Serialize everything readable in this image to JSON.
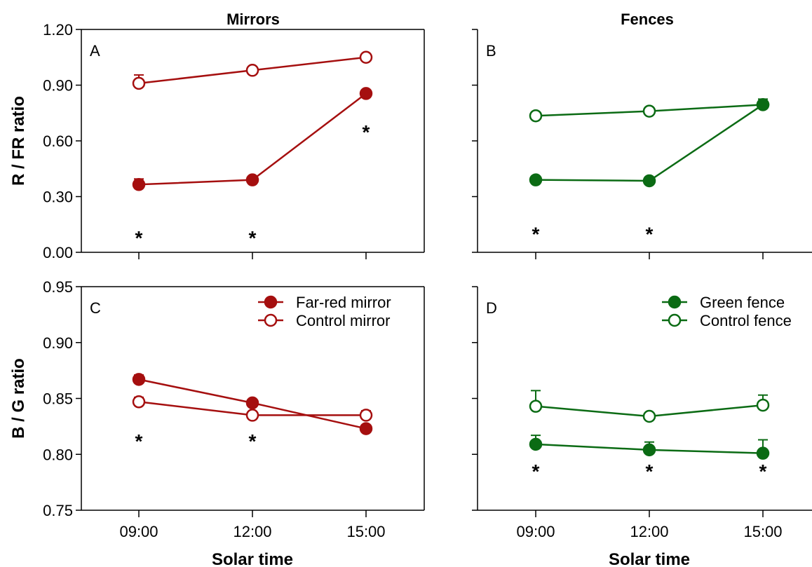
{
  "column_titles": [
    "Mirrors",
    "Fences"
  ],
  "colors": {
    "mirror": "#a50f0f",
    "fence": "#0b6b14"
  },
  "chart_data": [
    {
      "id": "A",
      "type": "line",
      "panel_label": "A",
      "column": "Mirrors",
      "categories": [
        "09:00",
        "12:00",
        "15:00"
      ],
      "ylabel": "R / FR ratio",
      "xlabel": "",
      "ylim": [
        0,
        1.2
      ],
      "yticks": [
        "0.00",
        "0.30",
        "0.60",
        "0.90",
        "1.20"
      ],
      "ytick_values": [
        0,
        0.3,
        0.6,
        0.9,
        1.2
      ],
      "show_ytick_labels": true,
      "show_xtick_labels": false,
      "legend": "none",
      "color_key": "mirror",
      "series": [
        {
          "key": "control",
          "filled": false,
          "values": [
            0.91,
            0.98,
            1.05
          ],
          "errors": [
            0.045,
            0.005,
            0.005
          ]
        },
        {
          "key": "treatment",
          "filled": true,
          "values": [
            0.365,
            0.39,
            0.855
          ],
          "errors": [
            0.03,
            0.005,
            0.005
          ]
        }
      ],
      "asterisks": [
        {
          "category": "09:00",
          "y": 0.08,
          "text": "*"
        },
        {
          "category": "12:00",
          "y": 0.08,
          "text": "*"
        },
        {
          "category": "15:00",
          "y": 0.65,
          "text": "*"
        }
      ]
    },
    {
      "id": "B",
      "type": "line",
      "panel_label": "B",
      "column": "Fences",
      "categories": [
        "09:00",
        "12:00",
        "15:00"
      ],
      "ylabel": "",
      "xlabel": "",
      "ylim": [
        0,
        1.2
      ],
      "yticks": [
        "0.00",
        "0.30",
        "0.60",
        "0.90",
        "1.20"
      ],
      "ytick_values": [
        0,
        0.3,
        0.6,
        0.9,
        1.2
      ],
      "show_ytick_labels": false,
      "show_xtick_labels": false,
      "legend": "none",
      "color_key": "fence",
      "series": [
        {
          "key": "control",
          "filled": false,
          "values": [
            0.735,
            0.76,
            0.795
          ],
          "errors": [
            0.005,
            0.005,
            0.005
          ]
        },
        {
          "key": "treatment",
          "filled": true,
          "values": [
            0.39,
            0.385,
            0.795
          ],
          "errors": [
            0.005,
            0.005,
            0.03
          ]
        }
      ],
      "asterisks": [
        {
          "category": "09:00",
          "y": 0.1,
          "text": "*"
        },
        {
          "category": "12:00",
          "y": 0.1,
          "text": "*"
        }
      ]
    },
    {
      "id": "C",
      "type": "line",
      "panel_label": "C",
      "column": "Mirrors",
      "categories": [
        "09:00",
        "12:00",
        "15:00"
      ],
      "ylabel": "B / G ratio",
      "xlabel": "Solar time",
      "ylim": [
        0.75,
        0.95
      ],
      "yticks": [
        "0.75",
        "0.80",
        "0.85",
        "0.90",
        "0.95"
      ],
      "ytick_values": [
        0.75,
        0.8,
        0.85,
        0.9,
        0.95
      ],
      "show_ytick_labels": true,
      "show_xtick_labels": true,
      "legend": "top-right",
      "color_key": "mirror",
      "series": [
        {
          "key": "treatment",
          "name": "Far-red mirror",
          "filled": true,
          "values": [
            0.867,
            0.846,
            0.823
          ],
          "errors": [
            0.004,
            0.001,
            0.001
          ]
        },
        {
          "key": "control",
          "name": "Control mirror",
          "filled": false,
          "values": [
            0.847,
            0.835,
            0.835
          ],
          "errors": [
            0.004,
            0.001,
            0.004
          ]
        }
      ],
      "asterisks": [
        {
          "category": "09:00",
          "y": 0.812,
          "text": "*"
        },
        {
          "category": "12:00",
          "y": 0.812,
          "text": "*"
        }
      ]
    },
    {
      "id": "D",
      "type": "line",
      "panel_label": "D",
      "column": "Fences",
      "categories": [
        "09:00",
        "12:00",
        "15:00"
      ],
      "ylabel": "",
      "xlabel": "Solar time",
      "ylim": [
        0.75,
        0.95
      ],
      "yticks": [
        "0.75",
        "0.80",
        "0.85",
        "0.90",
        "0.95"
      ],
      "ytick_values": [
        0.75,
        0.8,
        0.85,
        0.9,
        0.95
      ],
      "show_ytick_labels": false,
      "show_xtick_labels": true,
      "legend": "top-right",
      "color_key": "fence",
      "series": [
        {
          "key": "treatment",
          "name": "Green fence",
          "filled": true,
          "values": [
            0.809,
            0.804,
            0.801
          ],
          "errors": [
            0.008,
            0.007,
            0.012
          ]
        },
        {
          "key": "control",
          "name": "Control fence",
          "filled": false,
          "values": [
            0.843,
            0.834,
            0.844
          ],
          "errors": [
            0.014,
            0.001,
            0.009
          ]
        }
      ],
      "asterisks": [
        {
          "category": "09:00",
          "y": 0.785,
          "text": "*"
        },
        {
          "category": "12:00",
          "y": 0.785,
          "text": "*"
        },
        {
          "category": "15:00",
          "y": 0.785,
          "text": "*"
        }
      ]
    }
  ]
}
